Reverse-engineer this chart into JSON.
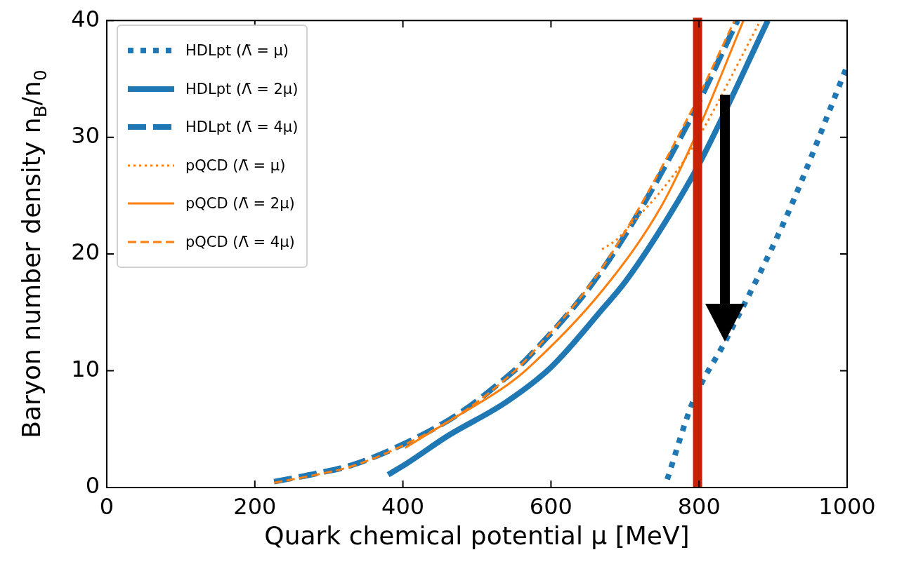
{
  "chart_data": {
    "type": "line",
    "xlabel": "Quark chemical potential μ [MeV]",
    "ylabel": "Baryon number density n$_{B}$/n$_{0}$",
    "xlim": [
      0,
      1000
    ],
    "xticks": [
      0,
      200,
      400,
      600,
      800,
      1000
    ],
    "ylim": [
      0,
      40
    ],
    "yticks": [
      0,
      10,
      20,
      30,
      40
    ],
    "grid": false,
    "legend": "top left",
    "marker": "none",
    "ref_lines": [
      {
        "axis": "x",
        "value": 798,
        "color": "#c82106"
      }
    ],
    "series": [
      {
        "name": "HDLpt (Λ̄ = μ)",
        "color": "#1f77b4",
        "line_style": "dotted",
        "x": [
          757,
          792,
          836,
          918,
          1000
        ],
        "values": [
          0.7,
          7.4,
          12.6,
          23.2,
          36.1
        ]
      },
      {
        "name": "HDLpt (Λ̄ = 2μ)",
        "color": "#1f77b4",
        "line_style": "solid",
        "x": [
          380,
          406,
          460,
          539,
          600,
          671,
          700,
          750,
          800,
          893
        ],
        "values": [
          1.1,
          2.1,
          4.4,
          7.3,
          10.3,
          15.4,
          17.6,
          22.3,
          27.7,
          40
        ]
      },
      {
        "name": "HDLpt (Λ̄ = 4μ)",
        "color": "#1f77b4",
        "line_style": "dashed",
        "x": [
          226,
          283,
          330,
          400,
          475,
          539,
          567,
          671,
          786,
          852
        ],
        "values": [
          0.5,
          1.2,
          1.9,
          3.7,
          6.3,
          9.4,
          11.0,
          18.8,
          31.3,
          40
        ]
      },
      {
        "name": "pQCD (Λ̄ = μ)",
        "color": "#ff7f0e",
        "line_style": "dotted",
        "x": [
          669,
          690,
          703,
          750,
          790,
          883
        ],
        "values": [
          20.4,
          21.3,
          22.2,
          25.5,
          29.0,
          40
        ]
      },
      {
        "name": "pQCD (Λ̄ = 2μ)",
        "color": "#ff7f0e",
        "line_style": "solid",
        "x": [
          403,
          460,
          539,
          567,
          671,
          750,
          800,
          860
        ],
        "values": [
          3.4,
          5.6,
          8.7,
          10.1,
          17.0,
          24.2,
          30.8,
          40
        ]
      },
      {
        "name": "pQCD (Λ̄ = 4μ)",
        "color": "#ff7f0e",
        "line_style": "dashed",
        "x": [
          226,
          283,
          330,
          400,
          475,
          539,
          567,
          671,
          786,
          848
        ],
        "values": [
          0.4,
          1.1,
          1.8,
          3.6,
          6.2,
          9.3,
          11.0,
          19.0,
          31.8,
          40
        ]
      }
    ]
  }
}
